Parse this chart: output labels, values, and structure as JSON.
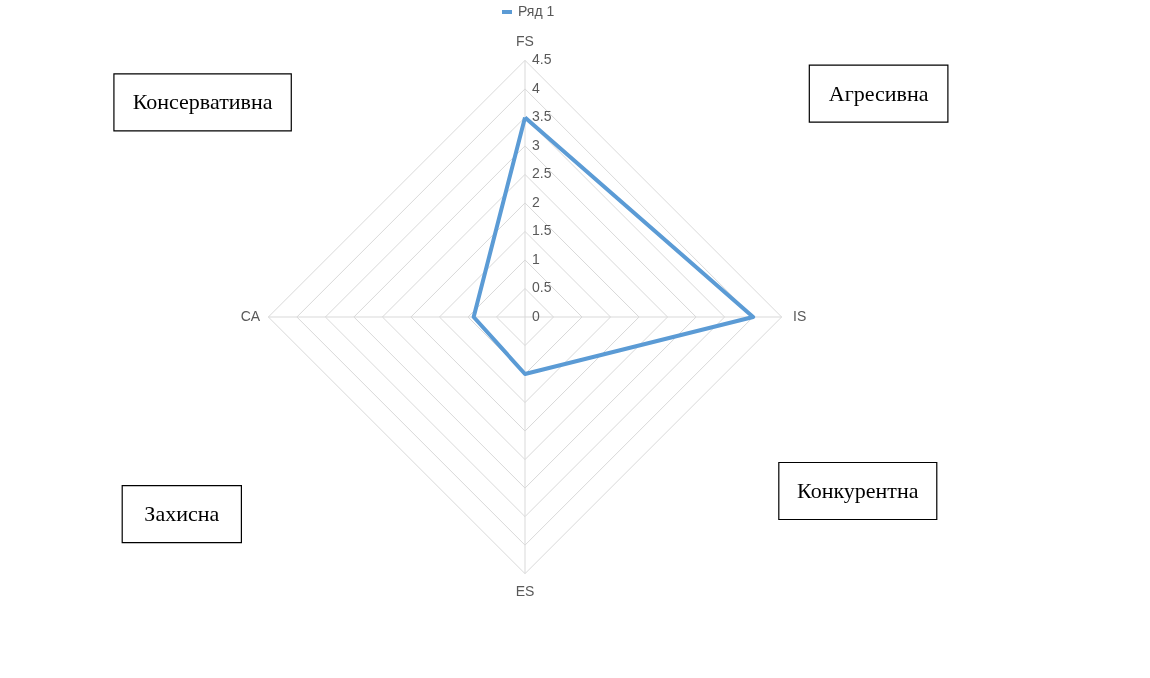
{
  "chart_data": {
    "type": "radar",
    "categories": [
      "FS",
      "IS",
      "ES",
      "CA"
    ],
    "series": [
      {
        "name": "Ряд 1",
        "color": "#5b9bd5",
        "values": [
          3.5,
          4,
          1,
          0.9
        ]
      }
    ],
    "ylim": [
      0,
      4.5
    ],
    "yticks": [
      0,
      0.5,
      1,
      1.5,
      2,
      2.5,
      3,
      3.5,
      4,
      4.5
    ],
    "grid": true,
    "legend": "top",
    "annotations": [
      "Консервативна",
      "Агресивна",
      "Конкурентна",
      "Захисна"
    ]
  }
}
